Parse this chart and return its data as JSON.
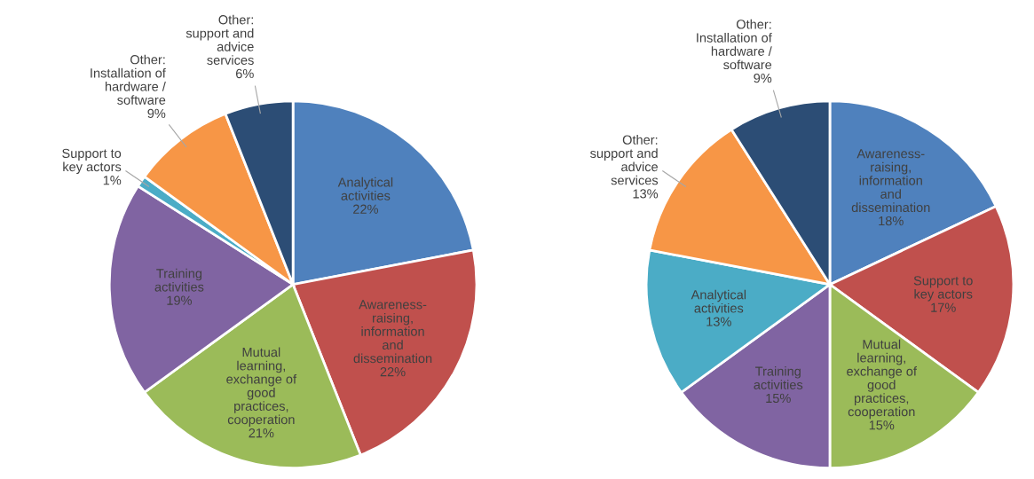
{
  "chart_data": [
    {
      "type": "pie",
      "categories": [
        "Analytical\nactivities",
        "Awareness-\nraising,\ninformation\nand\ndissemination",
        "Mutual\nlearning,\nexchange of\ngood\npractices,\ncooperation",
        "Training\nactivities",
        "Support to\nkey actors",
        "Other:\nInstallation of\nhardware /\nsoftware",
        "Other:\nsupport and\nadvice\nservices"
      ],
      "values": [
        22,
        22,
        21,
        19,
        1,
        9,
        6
      ],
      "value_labels": [
        "22%",
        "22%",
        "21%",
        "19%",
        "1%",
        "9%",
        "6%"
      ],
      "colors": [
        "#4f81bd",
        "#c0504d",
        "#9bbb59",
        "#8064a2",
        "#4bacc6",
        "#f79646",
        "#2c4d75"
      ]
    },
    {
      "type": "pie",
      "categories": [
        "Awareness-\nraising,\ninformation\nand\ndissemination",
        "Support to\nkey actors",
        "Mutual\nlearning,\nexchange of\ngood\npractices,\ncooperation",
        "Training\nactivities",
        "Analytical\nactivities",
        "Other:\nsupport and\nadvice\nservices",
        "Other:\nInstallation of\nhardware /\nsoftware"
      ],
      "values": [
        18,
        17,
        15,
        15,
        13,
        13,
        9
      ],
      "value_labels": [
        "18%",
        "17%",
        "15%",
        "15%",
        "13%",
        "13%",
        "9%"
      ],
      "colors": [
        "#4f81bd",
        "#c0504d",
        "#9bbb59",
        "#8064a2",
        "#4bacc6",
        "#f79646",
        "#2c4d75"
      ]
    }
  ]
}
